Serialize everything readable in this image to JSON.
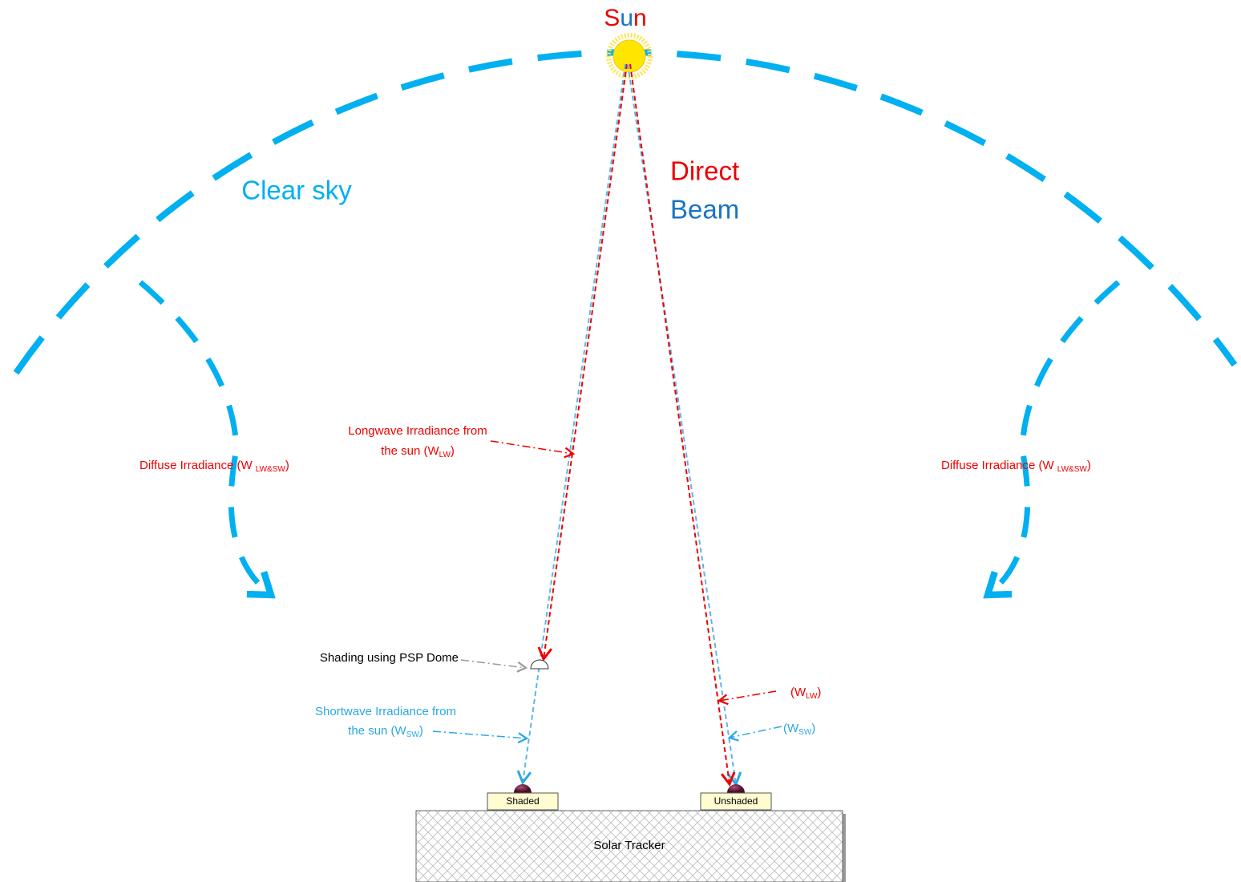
{
  "labels": {
    "sun": "Sun",
    "clear_sky": "Clear sky",
    "direct": "Direct",
    "beam": "Beam",
    "longwave": {
      "line1": "Longwave Irradiance from",
      "line2": [
        "the sun (W",
        "LW",
        ")"
      ]
    },
    "diffuse_left": [
      "Diffuse Irradiance (W ",
      "LW&SW",
      ")"
    ],
    "diffuse_right": [
      "Diffuse Irradiance (W ",
      "LW&SW",
      ")"
    ],
    "shading": "Shading using PSP Dome",
    "shortwave": {
      "line1": "Shortwave Irradiance from",
      "line2": [
        "the sun (W",
        "SW",
        ")"
      ]
    },
    "right_lw": [
      "(W",
      "LW",
      ")"
    ],
    "right_sw": [
      "(W",
      "SW",
      ")"
    ],
    "shaded": "Shaded",
    "unshaded": "Unshaded",
    "solar_tracker": "Solar Tracker"
  }
}
